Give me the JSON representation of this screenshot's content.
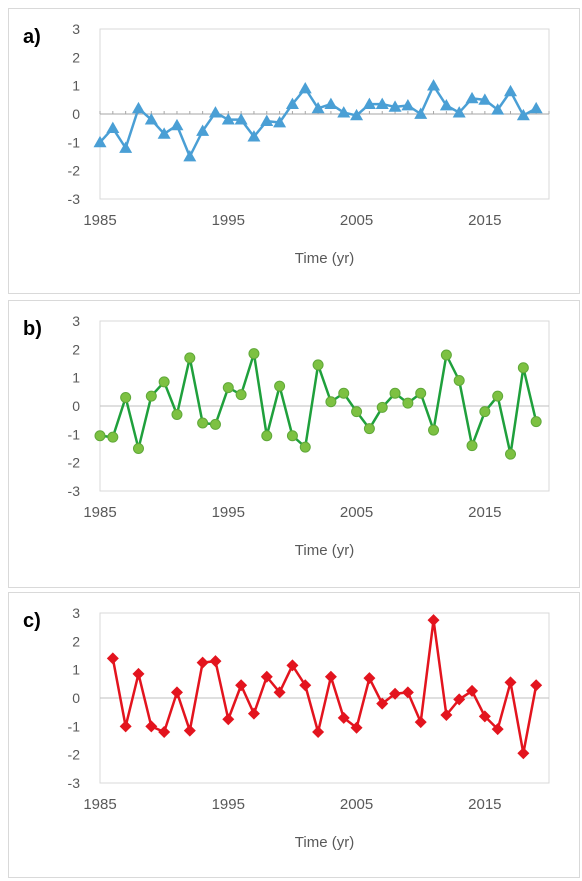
{
  "x_axis_title": "Time (yr)",
  "chart_data": [
    {
      "type": "line",
      "panel_label": "a)",
      "marker": "triangle",
      "color": "#4a9fd5",
      "x": [
        1985,
        1986,
        1987,
        1988,
        1989,
        1990,
        1991,
        1992,
        1993,
        1994,
        1995,
        1996,
        1997,
        1998,
        1999,
        2000,
        2001,
        2002,
        2003,
        2004,
        2005,
        2006,
        2007,
        2008,
        2009,
        2010,
        2011,
        2012,
        2013,
        2014,
        2015,
        2016,
        2017,
        2018,
        2019
      ],
      "values": [
        -1.0,
        -0.5,
        -1.2,
        0.2,
        -0.2,
        -0.7,
        -0.4,
        -1.5,
        -0.6,
        0.05,
        -0.2,
        -0.2,
        -0.8,
        -0.25,
        -0.3,
        0.35,
        0.9,
        0.2,
        0.35,
        0.05,
        -0.05,
        0.35,
        0.35,
        0.25,
        0.3,
        0.0,
        1.0,
        0.3,
        0.05,
        0.55,
        0.5,
        0.15,
        0.8,
        -0.05,
        0.2
      ],
      "xlim": [
        1985,
        2020
      ],
      "ylim": [
        -3,
        3
      ],
      "yticks": [
        -3,
        -2,
        -1,
        0,
        1,
        2,
        3
      ],
      "xticks": [
        1985,
        1995,
        2005,
        2015
      ],
      "xlabel": "Time (yr)",
      "zero_line": "dotted"
    },
    {
      "type": "line",
      "panel_label": "b)",
      "marker": "circle",
      "color": "#1fa03c",
      "marker_color": "#7dc142",
      "x": [
        1985,
        1986,
        1987,
        1988,
        1989,
        1990,
        1991,
        1992,
        1993,
        1994,
        1995,
        1996,
        1997,
        1998,
        1999,
        2000,
        2001,
        2002,
        2003,
        2004,
        2005,
        2006,
        2007,
        2008,
        2009,
        2010,
        2011,
        2012,
        2013,
        2014,
        2015,
        2016,
        2017,
        2018,
        2019
      ],
      "values": [
        -1.05,
        -1.1,
        0.3,
        -1.5,
        0.35,
        0.85,
        -0.3,
        1.7,
        -0.6,
        -0.65,
        0.65,
        0.4,
        1.85,
        -1.05,
        0.7,
        -1.05,
        -1.45,
        1.45,
        0.15,
        0.45,
        -0.2,
        -0.8,
        -0.05,
        0.45,
        0.1,
        0.45,
        -0.85,
        1.8,
        0.9,
        -1.4,
        -0.2,
        0.35,
        -1.7,
        1.35,
        -0.55
      ],
      "xlim": [
        1985,
        2020
      ],
      "ylim": [
        -3,
        3
      ],
      "yticks": [
        -3,
        -2,
        -1,
        0,
        1,
        2,
        3
      ],
      "xticks": [
        1985,
        1995,
        2005,
        2015
      ],
      "xlabel": "Time (yr)",
      "zero_line": "solid"
    },
    {
      "type": "line",
      "panel_label": "c)",
      "marker": "diamond",
      "color": "#e3141e",
      "x": [
        1986,
        1987,
        1988,
        1989,
        1990,
        1991,
        1992,
        1993,
        1994,
        1995,
        1996,
        1997,
        1998,
        1999,
        2000,
        2001,
        2002,
        2003,
        2004,
        2005,
        2006,
        2007,
        2008,
        2009,
        2010,
        2011,
        2012,
        2013,
        2014,
        2015,
        2016,
        2017,
        2018,
        2019
      ],
      "values": [
        1.4,
        -1.0,
        0.85,
        -1.0,
        -1.2,
        0.2,
        -1.15,
        1.25,
        1.3,
        -0.75,
        0.45,
        -0.55,
        0.75,
        0.2,
        1.15,
        0.45,
        -1.2,
        0.75,
        -0.7,
        -1.05,
        0.7,
        -0.2,
        0.15,
        0.2,
        -0.85,
        2.75,
        -0.6,
        -0.05,
        0.25,
        -0.65,
        -1.1,
        0.55,
        -1.95,
        0.45
      ],
      "xlim": [
        1985,
        2020
      ],
      "ylim": [
        -3,
        3
      ],
      "yticks": [
        -3,
        -2,
        -1,
        0,
        1,
        2,
        3
      ],
      "xticks": [
        1985,
        1995,
        2005,
        2015
      ],
      "xlabel": "Time (yr)",
      "zero_line": "solid"
    }
  ]
}
